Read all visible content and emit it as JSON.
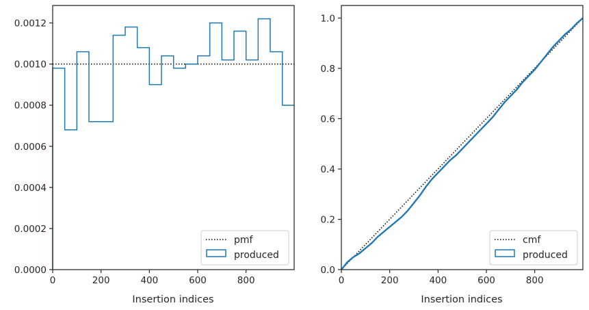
{
  "colors": {
    "produced": "#1f77b4",
    "reference": "#000000",
    "axes": "#262626"
  },
  "chart_data": [
    {
      "type": "line",
      "title": "",
      "xlabel": "Insertion indices",
      "ylabel": "",
      "xlim": [
        0,
        999
      ],
      "ylim": [
        0,
        0.001285
      ],
      "xticks": [
        0,
        200,
        400,
        600,
        800
      ],
      "yticks": [
        0,
        0.0002,
        0.0004,
        0.0006,
        0.0008,
        0.001,
        0.0012
      ],
      "ytick_labels": [
        "0.0000",
        "0.0002",
        "0.0004",
        "0.0006",
        "0.0008",
        "0.0010",
        "0.0012"
      ],
      "xtick_labels": [
        "0",
        "200",
        "400",
        "600",
        "800"
      ],
      "grid": false,
      "legend_position": "lower-right",
      "series": [
        {
          "name": "pmf",
          "style": "dotted",
          "x": [
            0,
            999
          ],
          "y": [
            0.001,
            0.001
          ]
        },
        {
          "name": "produced",
          "style": "step-histogram",
          "bin_edges": [
            0,
            50,
            100,
            150,
            200,
            250,
            300,
            350,
            400,
            450,
            500,
            550,
            600,
            650,
            700,
            750,
            800,
            850,
            900,
            950,
            999
          ],
          "values": [
            0.00098,
            0.00068,
            0.00106,
            0.00072,
            0.00072,
            0.00114,
            0.00118,
            0.00108,
            0.0009,
            0.00104,
            0.00098,
            0.001,
            0.00104,
            0.0012,
            0.00102,
            0.00116,
            0.00102,
            0.00122,
            0.00106,
            0.0008
          ]
        }
      ]
    },
    {
      "type": "line",
      "title": "",
      "xlabel": "Insertion indices",
      "ylabel": "",
      "xlim": [
        0,
        999
      ],
      "ylim": [
        0,
        1.05
      ],
      "xticks": [
        0,
        200,
        400,
        600,
        800
      ],
      "yticks": [
        0,
        0.2,
        0.4,
        0.6,
        0.8,
        1.0
      ],
      "ytick_labels": [
        "0.0",
        "0.2",
        "0.4",
        "0.6",
        "0.8",
        "1.0"
      ],
      "xtick_labels": [
        "0",
        "200",
        "400",
        "600",
        "800"
      ],
      "grid": false,
      "legend_position": "lower-right",
      "series": [
        {
          "name": "cmf",
          "style": "dotted",
          "x": [
            0,
            999
          ],
          "y": [
            0,
            1.0
          ]
        },
        {
          "name": "produced",
          "style": "solid",
          "x": [
            0,
            25,
            50,
            75,
            100,
            125,
            150,
            175,
            200,
            225,
            250,
            275,
            300,
            325,
            350,
            375,
            400,
            425,
            450,
            475,
            500,
            525,
            550,
            575,
            600,
            625,
            650,
            675,
            700,
            725,
            750,
            775,
            800,
            825,
            850,
            875,
            900,
            925,
            950,
            975,
            999
          ],
          "y": [
            0,
            0.03,
            0.05,
            0.065,
            0.085,
            0.105,
            0.13,
            0.15,
            0.17,
            0.19,
            0.21,
            0.235,
            0.265,
            0.295,
            0.33,
            0.36,
            0.385,
            0.41,
            0.435,
            0.455,
            0.48,
            0.505,
            0.53,
            0.555,
            0.58,
            0.605,
            0.635,
            0.665,
            0.69,
            0.715,
            0.745,
            0.77,
            0.795,
            0.825,
            0.855,
            0.885,
            0.91,
            0.935,
            0.955,
            0.98,
            1.0
          ]
        }
      ]
    }
  ]
}
